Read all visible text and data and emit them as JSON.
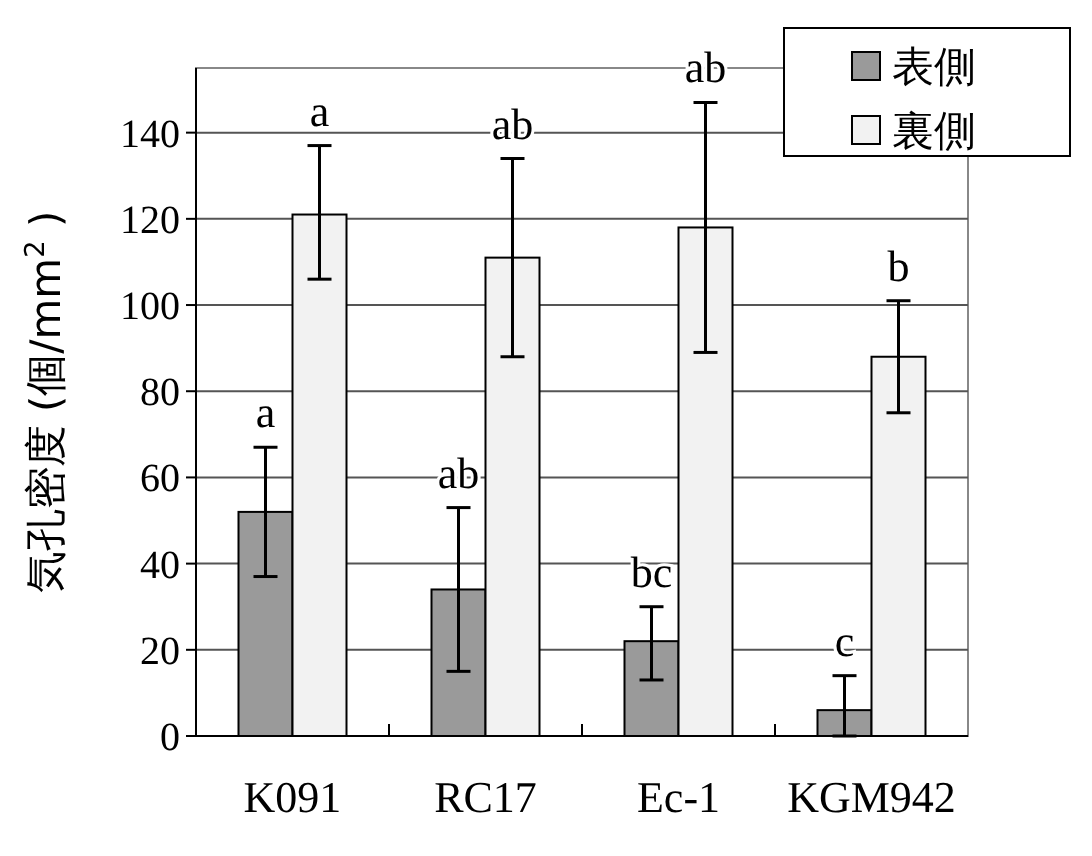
{
  "chart_data": {
    "type": "bar",
    "ylabel": "気孔密度 (個/mm$^{2}$)",
    "categories": [
      "K091",
      "RC17",
      "Ec-1",
      "KGM942"
    ],
    "series": [
      {
        "name": "表側",
        "color": "#9a9a9a",
        "values": [
          52,
          34,
          22,
          6
        ],
        "errors": [
          [
            37,
            67
          ],
          [
            15,
            53
          ],
          [
            13,
            30
          ],
          [
            0,
            14
          ]
        ]
      },
      {
        "name": "裏側",
        "color": "#f2f2f2",
        "values": [
          121,
          111,
          118,
          88
        ],
        "errors": [
          [
            106,
            137
          ],
          [
            88,
            134
          ],
          [
            89,
            147
          ],
          [
            75,
            101
          ]
        ]
      }
    ],
    "ylim": [
      0,
      155
    ],
    "yticks": [
      0,
      20,
      40,
      60,
      80,
      100,
      120,
      140
    ],
    "grid": "y",
    "legend": "top right",
    "annotations": [
      "a",
      "ab",
      "bc",
      "c",
      "a",
      "ab",
      "ab",
      "b"
    ]
  }
}
